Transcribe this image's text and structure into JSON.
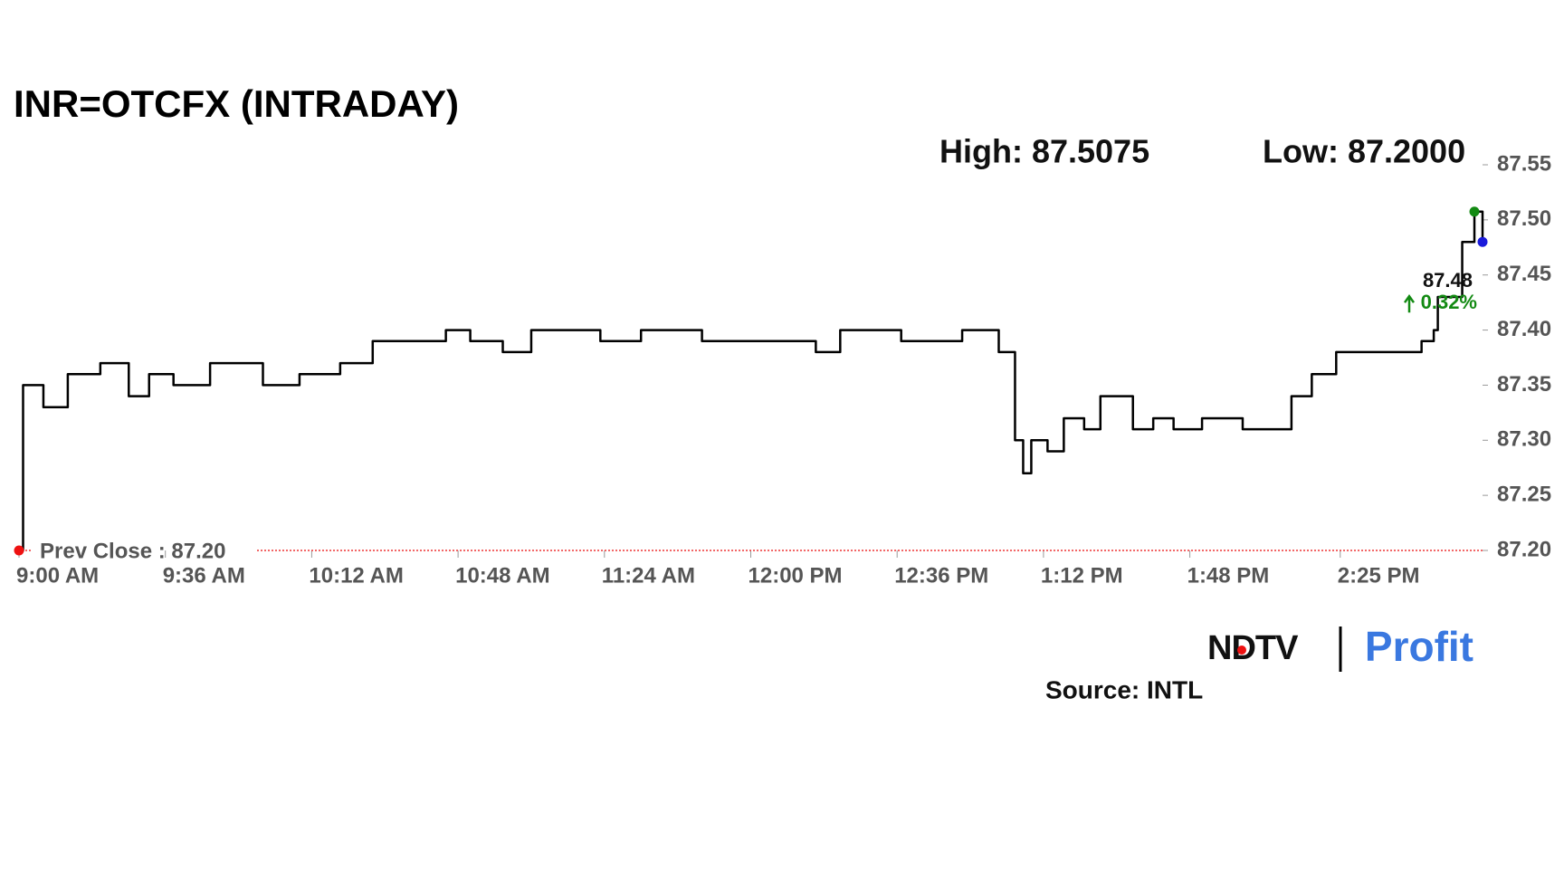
{
  "chart_data": {
    "type": "line",
    "title": "INR=OTCFX (INTRADAY)",
    "high_label": "High: 87.5075",
    "low_label": "Low: 87.2000",
    "prev_close": 87.2,
    "prev_close_label": "Prev Close : 87.20",
    "last_label": "87.48",
    "change_label": "0.32%",
    "change_color": "#138a13",
    "x": [
      "9:00 AM",
      "9:01 AM",
      "9:06 AM",
      "9:12 AM",
      "9:20 AM",
      "9:27 AM",
      "9:32 AM",
      "9:38 AM",
      "9:47 AM",
      "9:52 AM",
      "10:00 AM",
      "10:09 AM",
      "10:19 AM",
      "10:27 AM",
      "10:39 AM",
      "10:45 AM",
      "10:51 AM",
      "10:59 AM",
      "11:06 AM",
      "11:13 AM",
      "11:23 AM",
      "11:33 AM",
      "11:48 AM",
      "12:03 PM",
      "12:16 PM",
      "12:22 PM",
      "12:37 PM",
      "12:52 PM",
      "12:58 PM",
      "1:01 PM",
      "1:04 PM",
      "1:05 PM",
      "1:07 PM",
      "1:09 PM",
      "1:13 PM",
      "1:17 PM",
      "1:22 PM",
      "1:26 PM",
      "1:34 PM",
      "1:39 PM",
      "1:44 PM",
      "1:51 PM",
      "2:01 PM",
      "2:07 PM",
      "2:13 PM",
      "2:18 PM",
      "2:24 PM",
      "2:35 PM",
      "2:45 PM",
      "2:48 PM",
      "2:49 PM",
      "2:55 PM",
      "2:58 PM",
      "3:00 PM"
    ],
    "series": [
      {
        "name": "INR=OTCFX",
        "color": "#000000",
        "values": [
          87.2,
          87.35,
          87.33,
          87.36,
          87.37,
          87.34,
          87.36,
          87.35,
          87.37,
          87.37,
          87.35,
          87.36,
          87.37,
          87.39,
          87.39,
          87.4,
          87.39,
          87.38,
          87.4,
          87.4,
          87.39,
          87.4,
          87.39,
          87.39,
          87.38,
          87.4,
          87.39,
          87.4,
          87.4,
          87.38,
          87.38,
          87.3,
          87.27,
          87.3,
          87.29,
          87.32,
          87.31,
          87.34,
          87.31,
          87.32,
          87.31,
          87.32,
          87.31,
          87.31,
          87.34,
          87.36,
          87.38,
          87.38,
          87.39,
          87.4,
          87.43,
          87.48,
          87.5075,
          87.48
        ]
      }
    ],
    "markers": [
      {
        "index": 0,
        "color": "#ee1111"
      },
      {
        "index": 52,
        "color": "#138a13"
      },
      {
        "index": 53,
        "color": "#1a1adb"
      }
    ],
    "xlim": [
      "9:00 AM",
      "3:00 PM"
    ],
    "xticks": [
      "9:00 AM",
      "9:36 AM",
      "10:12 AM",
      "10:48 AM",
      "11:24 AM",
      "12:00 PM",
      "12:36 PM",
      "1:12 PM",
      "1:48 PM",
      "2:25 PM"
    ],
    "ylim": [
      87.2,
      87.55
    ],
    "yticks": [
      {
        "value": 87.2,
        "label": "87.20"
      },
      87.25,
      {
        "value": 87.3,
        "label": "87.30"
      },
      87.35,
      {
        "value": 87.4,
        "label": "87.40"
      },
      87.45,
      {
        "value": 87.5,
        "label": "87.50"
      },
      87.55
    ],
    "logo_left": "NDTV",
    "logo_right": "Profit",
    "source": "Source: INTL"
  }
}
